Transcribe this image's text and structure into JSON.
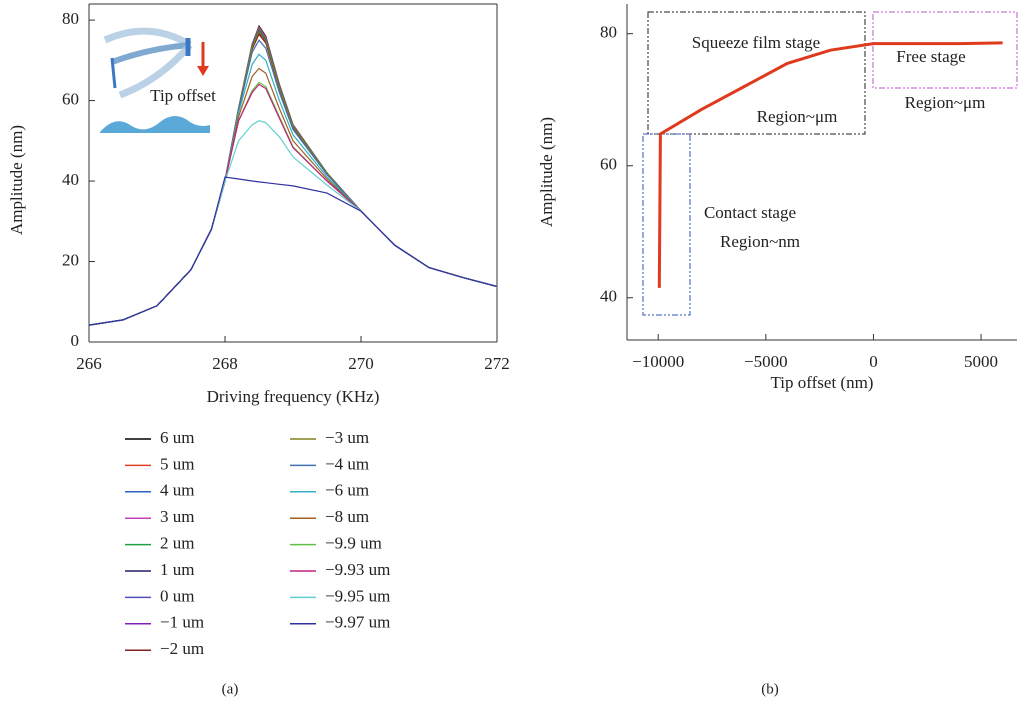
{
  "chart_data": [
    {
      "type": "line",
      "caption": "(a)",
      "xlabel": "Driving frequency (KHz)",
      "ylabel": "Amplitude (nm)",
      "annotations": [
        "Tip offset"
      ],
      "x": [
        266,
        266.5,
        267,
        267.5,
        267.8,
        268,
        268.2,
        268.4,
        268.5,
        268.6,
        268.8,
        269,
        269.5,
        270,
        270.5,
        271,
        271.5,
        272
      ],
      "xlim": [
        266,
        272
      ],
      "xticks": [
        266,
        268,
        270,
        272
      ],
      "ylim": [
        0,
        84
      ],
      "yticks": [
        0,
        20,
        40,
        60,
        80
      ],
      "series": [
        {
          "name": "6 um",
          "color": "#000000",
          "values": [
            4.2,
            5.5,
            9,
            18,
            28,
            40,
            58,
            74,
            78.5,
            76,
            64,
            54,
            42,
            32.5,
            24,
            18.5,
            16,
            13.8
          ]
        },
        {
          "name": "5 um",
          "color": "#e04020",
          "values": [
            4.2,
            5.5,
            9,
            18,
            28,
            40,
            58,
            74,
            78.3,
            75.8,
            63.9,
            54,
            42,
            32.5,
            24,
            18.5,
            16,
            13.8
          ]
        },
        {
          "name": "4 um",
          "color": "#3060c0",
          "values": [
            4.2,
            5.5,
            9,
            18,
            28,
            40,
            58,
            74,
            78,
            75.6,
            63.8,
            53.9,
            42,
            32.5,
            24,
            18.5,
            16,
            13.8
          ]
        },
        {
          "name": "3 um",
          "color": "#c040c0",
          "values": [
            4.2,
            5.5,
            9,
            18,
            28,
            40,
            58,
            73.8,
            77.8,
            75.4,
            63.6,
            53.8,
            42,
            32.5,
            24,
            18.5,
            16,
            13.8
          ]
        },
        {
          "name": "2 um",
          "color": "#20a040",
          "values": [
            4.2,
            5.5,
            9,
            18,
            28,
            40,
            58,
            73.6,
            77.6,
            75.2,
            63.5,
            53.7,
            42,
            32.5,
            24,
            18.5,
            16,
            13.8
          ]
        },
        {
          "name": "1 um",
          "color": "#202060",
          "values": [
            4.2,
            5.5,
            9,
            18,
            28,
            40,
            58,
            73.4,
            77.3,
            75,
            63.3,
            53.6,
            41.9,
            32.5,
            24,
            18.5,
            16,
            13.8
          ]
        },
        {
          "name": "0 um",
          "color": "#5050c0",
          "values": [
            4.2,
            5.5,
            9,
            18,
            28,
            40,
            58,
            73.2,
            77,
            74.7,
            63.2,
            53.5,
            41.9,
            32.5,
            24,
            18.5,
            16,
            13.8
          ]
        },
        {
          "name": "−1 um",
          "color": "#8020c0",
          "values": [
            4.2,
            5.5,
            9,
            18,
            28,
            40,
            58,
            73,
            76.8,
            74.5,
            63,
            53.4,
            41.8,
            32.5,
            24,
            18.5,
            16,
            13.8
          ]
        },
        {
          "name": "−2 um",
          "color": "#802020",
          "values": [
            4.2,
            5.5,
            9,
            18,
            28,
            40,
            58,
            72.8,
            76.5,
            74.3,
            62.9,
            53.3,
            41.8,
            32.5,
            24,
            18.5,
            16,
            13.8
          ]
        },
        {
          "name": "−3 um",
          "color": "#808020",
          "values": [
            4.2,
            5.5,
            9,
            18,
            28,
            40,
            58,
            73.3,
            77.2,
            74.9,
            63.2,
            53.5,
            41.9,
            32.5,
            24,
            18.5,
            16,
            13.8
          ]
        },
        {
          "name": "−4 um",
          "color": "#4070b0",
          "values": [
            4.2,
            5.5,
            9,
            18,
            28,
            40,
            57.5,
            72,
            75,
            73,
            62,
            52.8,
            41.6,
            32.5,
            24,
            18.5,
            16,
            13.8
          ]
        },
        {
          "name": "−6 um",
          "color": "#30b0c0",
          "values": [
            4.2,
            5.5,
            9,
            18,
            28,
            40,
            57,
            69,
            71.5,
            70,
            60,
            51.5,
            41,
            32.5,
            24,
            18.5,
            16,
            13.8
          ]
        },
        {
          "name": "−8 um",
          "color": "#a06020",
          "values": [
            4.2,
            5.5,
            9,
            18,
            28,
            40,
            56,
            66,
            68,
            66.8,
            58,
            50,
            40.5,
            32.5,
            24,
            18.5,
            16,
            13.8
          ]
        },
        {
          "name": "−9.9 um",
          "color": "#60c040",
          "values": [
            4.2,
            5.5,
            9,
            18,
            28,
            40,
            55,
            62.5,
            64.5,
            63.5,
            56,
            48.5,
            40,
            32.5,
            24,
            18.5,
            16,
            13.8
          ]
        },
        {
          "name": "−9.93 um",
          "color": "#c02080",
          "values": [
            4.2,
            5.5,
            9,
            18,
            28,
            40,
            55,
            62,
            64,
            63,
            55.6,
            48.3,
            40,
            32.5,
            24,
            18.5,
            16,
            13.8
          ]
        },
        {
          "name": "−9.95 um",
          "color": "#60d0d0",
          "values": [
            4.2,
            5.5,
            9,
            18,
            28,
            40,
            50,
            54,
            55,
            54.5,
            51,
            46,
            39,
            32.5,
            24,
            18.5,
            16,
            13.8
          ]
        },
        {
          "name": "−9.97 um",
          "color": "#3030a0",
          "values": [
            4.2,
            5.5,
            9,
            18,
            28,
            41,
            40.5,
            40,
            39.8,
            39.6,
            39.2,
            38.8,
            37,
            32.5,
            24,
            18.5,
            16,
            13.8
          ]
        }
      ]
    },
    {
      "type": "line",
      "caption": "(b)",
      "xlabel": "Tip offset (nm)",
      "ylabel": "Amplitude (nm)",
      "annotations": [
        "Squeeze film stage",
        "Region~μm",
        "Free stage",
        "Region~μm",
        "Contact stage",
        "Region~nm"
      ],
      "x": [
        -9950,
        -9900,
        -8000,
        -6000,
        -4000,
        -2000,
        0,
        2000,
        4000,
        6000
      ],
      "values": [
        41.5,
        64.8,
        68.5,
        72,
        75.5,
        77.5,
        78.5,
        78.5,
        78.5,
        78.6
      ],
      "color": "#e03a1e",
      "xlim": [
        -11450,
        6670
      ],
      "xticks": [
        {
          "value": -10000,
          "label": "−10000"
        },
        {
          "value": -5000,
          "label": "−5000"
        },
        0,
        5000
      ],
      "ylim": [
        33.6,
        84.5
      ],
      "yticks": [
        40,
        60,
        80
      ]
    }
  ]
}
